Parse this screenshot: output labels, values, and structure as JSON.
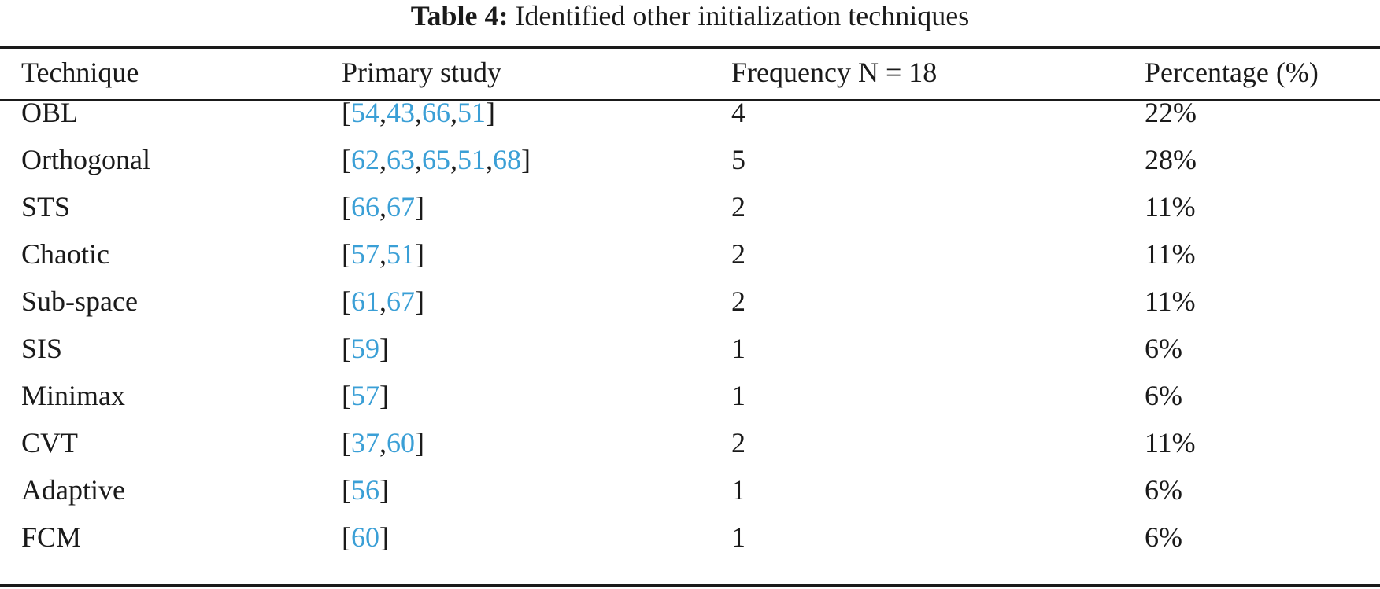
{
  "caption": {
    "label": "Table 4:",
    "text": "Identified other initialization techniques"
  },
  "table": {
    "headers": [
      "Technique",
      "Primary study",
      "Frequency N = 18",
      "Percentage (%)"
    ],
    "rows": [
      {
        "technique": "OBL",
        "refs": [
          "54",
          "43",
          "66",
          "51"
        ],
        "frequency": "4",
        "percentage": "22%"
      },
      {
        "technique": "Orthogonal",
        "refs": [
          "62",
          "63",
          "65",
          "51",
          "68"
        ],
        "frequency": "5",
        "percentage": "28%"
      },
      {
        "technique": "STS",
        "refs": [
          "66",
          "67"
        ],
        "frequency": "2",
        "percentage": "11%"
      },
      {
        "technique": "Chaotic",
        "refs": [
          "57",
          "51"
        ],
        "frequency": "2",
        "percentage": "11%"
      },
      {
        "technique": "Sub-space",
        "refs": [
          "61",
          "67"
        ],
        "frequency": "2",
        "percentage": "11%"
      },
      {
        "technique": "SIS",
        "refs": [
          "59"
        ],
        "frequency": "1",
        "percentage": "6%"
      },
      {
        "technique": "Minimax",
        "refs": [
          "57"
        ],
        "frequency": "1",
        "percentage": "6%"
      },
      {
        "technique": "CVT",
        "refs": [
          "37",
          "60"
        ],
        "frequency": "2",
        "percentage": "11%"
      },
      {
        "technique": "Adaptive",
        "refs": [
          "56"
        ],
        "frequency": "1",
        "percentage": "6%"
      },
      {
        "technique": "FCM",
        "refs": [
          "60"
        ],
        "frequency": "1",
        "percentage": "6%"
      }
    ]
  },
  "colors": {
    "text": "#1a1a1a",
    "reference_link": "#3a9fd6"
  }
}
